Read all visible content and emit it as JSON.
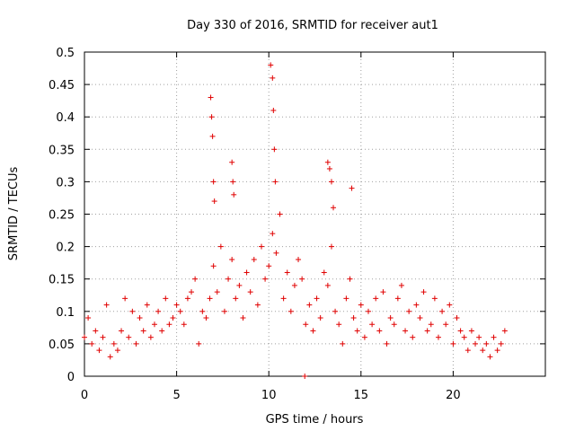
{
  "chart_data": {
    "type": "scatter",
    "title": "Day 330 of 2016, SRMTID for receiver aut1",
    "xlabel": "GPS time / hours",
    "ylabel": "SRMTID / TECUs",
    "xlim": [
      0,
      25
    ],
    "ylim": [
      0,
      0.5
    ],
    "x_ticks": [
      "0",
      "5",
      "10",
      "15",
      "20"
    ],
    "y_ticks": [
      "0",
      "0.05",
      "0.1",
      "0.15",
      "0.2",
      "0.25",
      "0.3",
      "0.35",
      "0.4",
      "0.45",
      "0.5"
    ],
    "grid": true,
    "series_color": "#e00000",
    "marker": "plus",
    "series": [
      {
        "name": "aut1",
        "x": [
          0.0,
          0.2,
          0.4,
          0.6,
          0.8,
          1.0,
          1.2,
          1.4,
          1.6,
          1.8,
          2.0,
          2.2,
          2.4,
          2.6,
          2.8,
          3.0,
          3.2,
          3.4,
          3.6,
          3.8,
          4.0,
          4.2,
          4.4,
          4.6,
          4.8,
          5.0,
          5.2,
          5.4,
          5.6,
          5.8,
          6.0,
          6.2,
          6.4,
          6.6,
          6.8,
          7.0,
          7.2,
          7.4,
          7.6,
          7.8,
          8.0,
          8.2,
          8.4,
          8.6,
          8.8,
          9.0,
          9.2,
          9.4,
          9.6,
          9.8,
          10.0,
          10.2,
          10.4,
          10.6,
          10.8,
          11.0,
          11.2,
          11.4,
          11.6,
          11.8,
          12.0,
          12.2,
          12.4,
          12.6,
          12.8,
          13.0,
          13.2,
          13.4,
          13.6,
          13.8,
          14.0,
          14.2,
          14.4,
          14.6,
          14.8,
          15.0,
          15.2,
          15.4,
          15.6,
          15.8,
          16.0,
          16.2,
          16.4,
          16.6,
          16.8,
          17.0,
          17.2,
          17.4,
          17.6,
          17.8,
          18.0,
          18.2,
          18.4,
          18.6,
          18.8,
          19.0,
          19.2,
          19.4,
          19.6,
          19.8,
          20.0,
          20.2,
          20.4,
          20.6,
          20.8,
          21.0,
          21.2,
          21.4,
          21.6,
          21.8,
          22.0,
          22.2,
          22.4,
          22.6,
          22.8,
          6.85,
          6.9,
          6.95,
          7.0,
          7.05,
          8.0,
          8.05,
          8.1,
          10.1,
          10.2,
          10.25,
          10.3,
          10.35,
          13.2,
          13.3,
          13.4,
          13.5,
          14.5,
          11.95
        ],
        "y": [
          0.06,
          0.09,
          0.05,
          0.07,
          0.04,
          0.06,
          0.11,
          0.03,
          0.05,
          0.04,
          0.07,
          0.12,
          0.06,
          0.1,
          0.05,
          0.09,
          0.07,
          0.11,
          0.06,
          0.08,
          0.1,
          0.07,
          0.12,
          0.08,
          0.09,
          0.11,
          0.1,
          0.08,
          0.12,
          0.13,
          0.15,
          0.05,
          0.1,
          0.09,
          0.12,
          0.17,
          0.13,
          0.2,
          0.1,
          0.15,
          0.18,
          0.12,
          0.14,
          0.09,
          0.16,
          0.13,
          0.18,
          0.11,
          0.2,
          0.15,
          0.17,
          0.22,
          0.19,
          0.25,
          0.12,
          0.16,
          0.1,
          0.14,
          0.18,
          0.15,
          0.08,
          0.11,
          0.07,
          0.12,
          0.09,
          0.16,
          0.14,
          0.2,
          0.1,
          0.08,
          0.05,
          0.12,
          0.15,
          0.09,
          0.07,
          0.11,
          0.06,
          0.1,
          0.08,
          0.12,
          0.07,
          0.13,
          0.05,
          0.09,
          0.08,
          0.12,
          0.14,
          0.07,
          0.1,
          0.06,
          0.11,
          0.09,
          0.13,
          0.07,
          0.08,
          0.12,
          0.06,
          0.1,
          0.08,
          0.11,
          0.05,
          0.09,
          0.07,
          0.06,
          0.04,
          0.07,
          0.05,
          0.06,
          0.04,
          0.05,
          0.03,
          0.06,
          0.04,
          0.05,
          0.07,
          0.43,
          0.4,
          0.37,
          0.3,
          0.27,
          0.33,
          0.3,
          0.28,
          0.48,
          0.46,
          0.41,
          0.35,
          0.3,
          0.33,
          0.32,
          0.3,
          0.26,
          0.29,
          0.0
        ]
      }
    ]
  }
}
